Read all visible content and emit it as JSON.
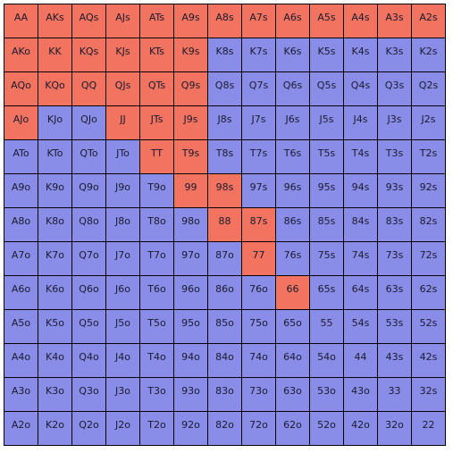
{
  "colors": {
    "in_range": "#f2735f",
    "out_of_range": "#8a8de8"
  },
  "grid": {
    "rows": [
      [
        {
          "label": "AA",
          "selected": true
        },
        {
          "label": "AKs",
          "selected": true
        },
        {
          "label": "AQs",
          "selected": true
        },
        {
          "label": "AJs",
          "selected": true
        },
        {
          "label": "ATs",
          "selected": true
        },
        {
          "label": "A9s",
          "selected": true
        },
        {
          "label": "A8s",
          "selected": true
        },
        {
          "label": "A7s",
          "selected": true
        },
        {
          "label": "A6s",
          "selected": true
        },
        {
          "label": "A5s",
          "selected": true
        },
        {
          "label": "A4s",
          "selected": true
        },
        {
          "label": "A3s",
          "selected": true
        },
        {
          "label": "A2s",
          "selected": true
        }
      ],
      [
        {
          "label": "AKo",
          "selected": true
        },
        {
          "label": "KK",
          "selected": true
        },
        {
          "label": "KQs",
          "selected": true
        },
        {
          "label": "KJs",
          "selected": true
        },
        {
          "label": "KTs",
          "selected": true
        },
        {
          "label": "K9s",
          "selected": true
        },
        {
          "label": "K8s",
          "selected": false
        },
        {
          "label": "K7s",
          "selected": false
        },
        {
          "label": "K6s",
          "selected": false
        },
        {
          "label": "K5s",
          "selected": false
        },
        {
          "label": "K4s",
          "selected": false
        },
        {
          "label": "K3s",
          "selected": false
        },
        {
          "label": "K2s",
          "selected": false
        }
      ],
      [
        {
          "label": "AQo",
          "selected": true
        },
        {
          "label": "KQo",
          "selected": true
        },
        {
          "label": "QQ",
          "selected": true
        },
        {
          "label": "QJs",
          "selected": true
        },
        {
          "label": "QTs",
          "selected": true
        },
        {
          "label": "Q9s",
          "selected": true
        },
        {
          "label": "Q8s",
          "selected": false
        },
        {
          "label": "Q7s",
          "selected": false
        },
        {
          "label": "Q6s",
          "selected": false
        },
        {
          "label": "Q5s",
          "selected": false
        },
        {
          "label": "Q4s",
          "selected": false
        },
        {
          "label": "Q3s",
          "selected": false
        },
        {
          "label": "Q2s",
          "selected": false
        }
      ],
      [
        {
          "label": "AJo",
          "selected": true
        },
        {
          "label": "KJo",
          "selected": false
        },
        {
          "label": "QJo",
          "selected": false
        },
        {
          "label": "JJ",
          "selected": true
        },
        {
          "label": "JTs",
          "selected": true
        },
        {
          "label": "J9s",
          "selected": true
        },
        {
          "label": "J8s",
          "selected": false
        },
        {
          "label": "J7s",
          "selected": false
        },
        {
          "label": "J6s",
          "selected": false
        },
        {
          "label": "J5s",
          "selected": false
        },
        {
          "label": "J4s",
          "selected": false
        },
        {
          "label": "J3s",
          "selected": false
        },
        {
          "label": "J2s",
          "selected": false
        }
      ],
      [
        {
          "label": "ATo",
          "selected": false
        },
        {
          "label": "KTo",
          "selected": false
        },
        {
          "label": "QTo",
          "selected": false
        },
        {
          "label": "JTo",
          "selected": false
        },
        {
          "label": "TT",
          "selected": true
        },
        {
          "label": "T9s",
          "selected": true
        },
        {
          "label": "T8s",
          "selected": false
        },
        {
          "label": "T7s",
          "selected": false
        },
        {
          "label": "T6s",
          "selected": false
        },
        {
          "label": "T5s",
          "selected": false
        },
        {
          "label": "T4s",
          "selected": false
        },
        {
          "label": "T3s",
          "selected": false
        },
        {
          "label": "T2s",
          "selected": false
        }
      ],
      [
        {
          "label": "A9o",
          "selected": false
        },
        {
          "label": "K9o",
          "selected": false
        },
        {
          "label": "Q9o",
          "selected": false
        },
        {
          "label": "J9o",
          "selected": false
        },
        {
          "label": "T9o",
          "selected": false
        },
        {
          "label": "99",
          "selected": true
        },
        {
          "label": "98s",
          "selected": true
        },
        {
          "label": "97s",
          "selected": false
        },
        {
          "label": "96s",
          "selected": false
        },
        {
          "label": "95s",
          "selected": false
        },
        {
          "label": "94s",
          "selected": false
        },
        {
          "label": "93s",
          "selected": false
        },
        {
          "label": "92s",
          "selected": false
        }
      ],
      [
        {
          "label": "A8o",
          "selected": false
        },
        {
          "label": "K8o",
          "selected": false
        },
        {
          "label": "Q8o",
          "selected": false
        },
        {
          "label": "J8o",
          "selected": false
        },
        {
          "label": "T8o",
          "selected": false
        },
        {
          "label": "98o",
          "selected": false
        },
        {
          "label": "88",
          "selected": true
        },
        {
          "label": "87s",
          "selected": true
        },
        {
          "label": "86s",
          "selected": false
        },
        {
          "label": "85s",
          "selected": false
        },
        {
          "label": "84s",
          "selected": false
        },
        {
          "label": "83s",
          "selected": false
        },
        {
          "label": "82s",
          "selected": false
        }
      ],
      [
        {
          "label": "A7o",
          "selected": false
        },
        {
          "label": "K7o",
          "selected": false
        },
        {
          "label": "Q7o",
          "selected": false
        },
        {
          "label": "J7o",
          "selected": false
        },
        {
          "label": "T7o",
          "selected": false
        },
        {
          "label": "97o",
          "selected": false
        },
        {
          "label": "87o",
          "selected": false
        },
        {
          "label": "77",
          "selected": true
        },
        {
          "label": "76s",
          "selected": false
        },
        {
          "label": "75s",
          "selected": false
        },
        {
          "label": "74s",
          "selected": false
        },
        {
          "label": "73s",
          "selected": false
        },
        {
          "label": "72s",
          "selected": false
        }
      ],
      [
        {
          "label": "A6o",
          "selected": false
        },
        {
          "label": "K6o",
          "selected": false
        },
        {
          "label": "Q6o",
          "selected": false
        },
        {
          "label": "J6o",
          "selected": false
        },
        {
          "label": "T6o",
          "selected": false
        },
        {
          "label": "96o",
          "selected": false
        },
        {
          "label": "86o",
          "selected": false
        },
        {
          "label": "76o",
          "selected": false
        },
        {
          "label": "66",
          "selected": true
        },
        {
          "label": "65s",
          "selected": false
        },
        {
          "label": "64s",
          "selected": false
        },
        {
          "label": "63s",
          "selected": false
        },
        {
          "label": "62s",
          "selected": false
        }
      ],
      [
        {
          "label": "A5o",
          "selected": false
        },
        {
          "label": "K5o",
          "selected": false
        },
        {
          "label": "Q5o",
          "selected": false
        },
        {
          "label": "J5o",
          "selected": false
        },
        {
          "label": "T5o",
          "selected": false
        },
        {
          "label": "95o",
          "selected": false
        },
        {
          "label": "85o",
          "selected": false
        },
        {
          "label": "75o",
          "selected": false
        },
        {
          "label": "65o",
          "selected": false
        },
        {
          "label": "55",
          "selected": false
        },
        {
          "label": "54s",
          "selected": false
        },
        {
          "label": "53s",
          "selected": false
        },
        {
          "label": "52s",
          "selected": false
        }
      ],
      [
        {
          "label": "A4o",
          "selected": false
        },
        {
          "label": "K4o",
          "selected": false
        },
        {
          "label": "Q4o",
          "selected": false
        },
        {
          "label": "J4o",
          "selected": false
        },
        {
          "label": "T4o",
          "selected": false
        },
        {
          "label": "94o",
          "selected": false
        },
        {
          "label": "84o",
          "selected": false
        },
        {
          "label": "74o",
          "selected": false
        },
        {
          "label": "64o",
          "selected": false
        },
        {
          "label": "54o",
          "selected": false
        },
        {
          "label": "44",
          "selected": false
        },
        {
          "label": "43s",
          "selected": false
        },
        {
          "label": "42s",
          "selected": false
        }
      ],
      [
        {
          "label": "A3o",
          "selected": false
        },
        {
          "label": "K3o",
          "selected": false
        },
        {
          "label": "Q3o",
          "selected": false
        },
        {
          "label": "J3o",
          "selected": false
        },
        {
          "label": "T3o",
          "selected": false
        },
        {
          "label": "93o",
          "selected": false
        },
        {
          "label": "83o",
          "selected": false
        },
        {
          "label": "73o",
          "selected": false
        },
        {
          "label": "63o",
          "selected": false
        },
        {
          "label": "53o",
          "selected": false
        },
        {
          "label": "43o",
          "selected": false
        },
        {
          "label": "33",
          "selected": false
        },
        {
          "label": "32s",
          "selected": false
        }
      ],
      [
        {
          "label": "A2o",
          "selected": false
        },
        {
          "label": "K2o",
          "selected": false
        },
        {
          "label": "Q2o",
          "selected": false
        },
        {
          "label": "J2o",
          "selected": false
        },
        {
          "label": "T2o",
          "selected": false
        },
        {
          "label": "92o",
          "selected": false
        },
        {
          "label": "82o",
          "selected": false
        },
        {
          "label": "72o",
          "selected": false
        },
        {
          "label": "62o",
          "selected": false
        },
        {
          "label": "52o",
          "selected": false
        },
        {
          "label": "42o",
          "selected": false
        },
        {
          "label": "32o",
          "selected": false
        },
        {
          "label": "22",
          "selected": false
        }
      ]
    ]
  }
}
